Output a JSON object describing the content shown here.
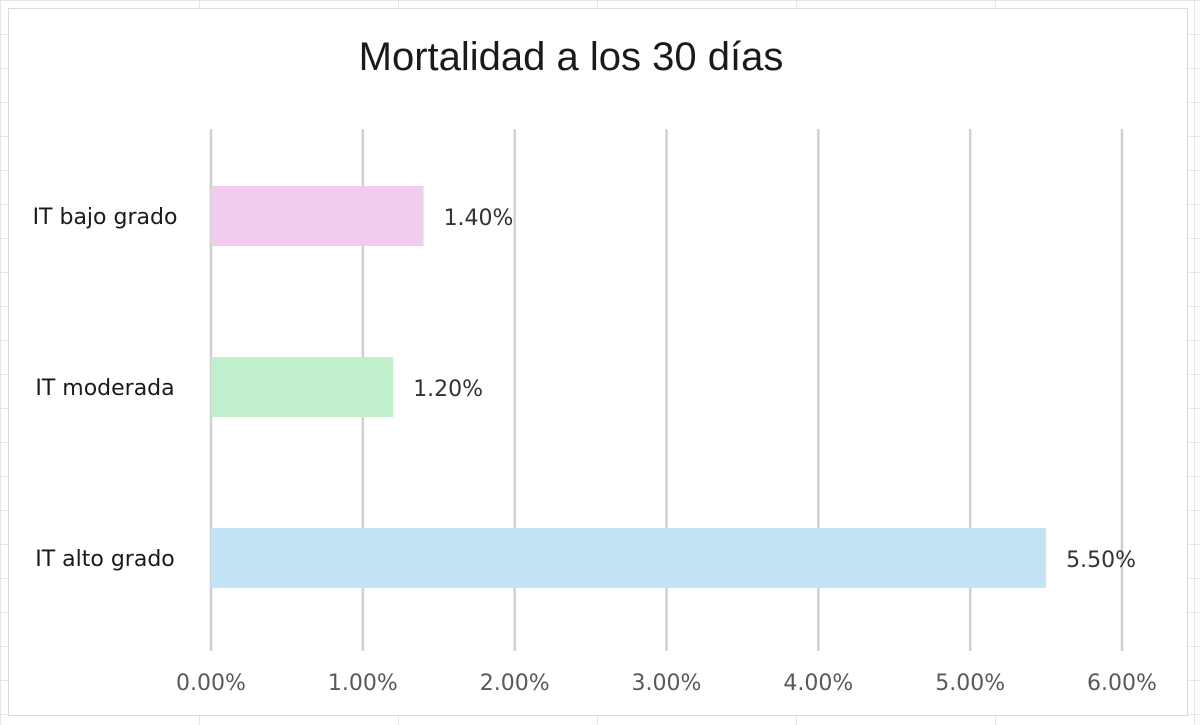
{
  "chart_data": {
    "type": "bar",
    "orientation": "horizontal",
    "title": "Mortalidad a los 30 días",
    "xlabel": "",
    "ylabel": "",
    "categories": [
      "IT bajo grado",
      "IT moderada",
      "IT alto grado"
    ],
    "values": [
      1.4,
      1.2,
      5.5
    ],
    "value_labels": [
      "1.40%",
      "1.20%",
      "5.50%"
    ],
    "bar_colors": [
      "#f0cdee",
      "#c1efcb",
      "#c3e4f4"
    ],
    "xlim": [
      0,
      6
    ],
    "x_ticks": [
      0,
      1,
      2,
      3,
      4,
      5,
      6
    ],
    "x_tick_labels": [
      "0.00%",
      "1.00%",
      "2.00%",
      "3.00%",
      "4.00%",
      "5.00%",
      "6.00%"
    ],
    "grid": true,
    "legend": "none"
  }
}
